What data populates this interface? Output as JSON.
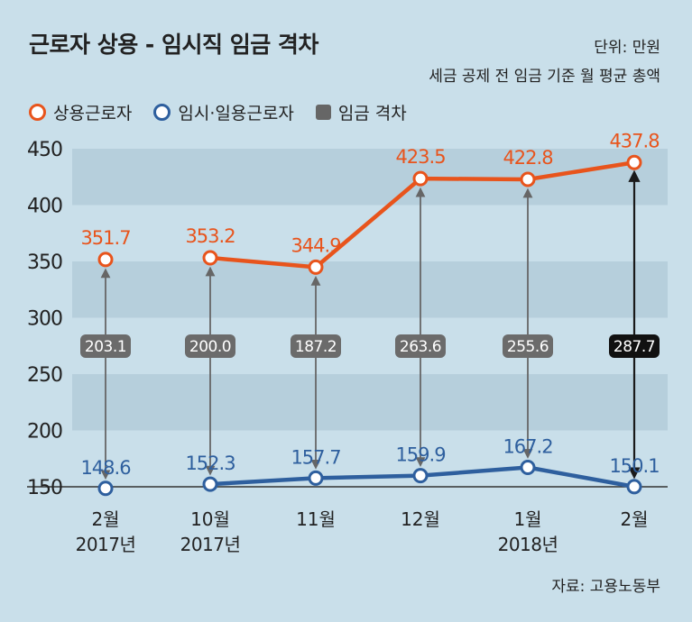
{
  "title": "근로자 상용 - 임시직 임금 격차",
  "unit": "단위: 만원",
  "note": "세금 공제 전 임금 기준 월 평균 총액",
  "legend": {
    "regular": "상용근로자",
    "temporary": "임시·일용근로자",
    "gap": "임금 격차"
  },
  "source": "자료: 고용노동부",
  "colors": {
    "regular": "#e8541c",
    "temporary": "#2e5f9e",
    "gap": "#666666",
    "gap_last": "#1a1a1a",
    "band": "#b6cfdc"
  },
  "chart_data": {
    "type": "line",
    "categories": [
      {
        "line1": "2월",
        "line2": "2017년"
      },
      {
        "line1": "10월",
        "line2": "2017년"
      },
      {
        "line1": "11월",
        "line2": ""
      },
      {
        "line1": "12월",
        "line2": ""
      },
      {
        "line1": "1월",
        "line2": "2018년"
      },
      {
        "line1": "2월",
        "line2": ""
      }
    ],
    "series": [
      {
        "name": "상용근로자",
        "values": [
          351.7,
          353.2,
          344.9,
          423.5,
          422.8,
          437.8
        ],
        "labels": [
          "351.7",
          "353.2",
          "344.9",
          "423.5",
          "422.8",
          "437.8"
        ]
      },
      {
        "name": "임시·일용근로자",
        "values": [
          148.6,
          152.3,
          157.7,
          159.9,
          167.2,
          150.1
        ],
        "labels": [
          "148.6",
          "152.3",
          "157.7",
          "159.9",
          "167.2",
          "150.1"
        ]
      }
    ],
    "gap": {
      "name": "임금 격차",
      "values": [
        203.1,
        200.0,
        187.2,
        263.6,
        255.6,
        287.7
      ],
      "labels": [
        "203.1",
        "200.0",
        "187.2",
        "263.6",
        "255.6",
        "287.7"
      ]
    },
    "regular_line_break_after_first": true,
    "yticks": [
      "150",
      "200",
      "250",
      "300",
      "350",
      "400",
      "450"
    ],
    "ylim": [
      150,
      450
    ]
  }
}
